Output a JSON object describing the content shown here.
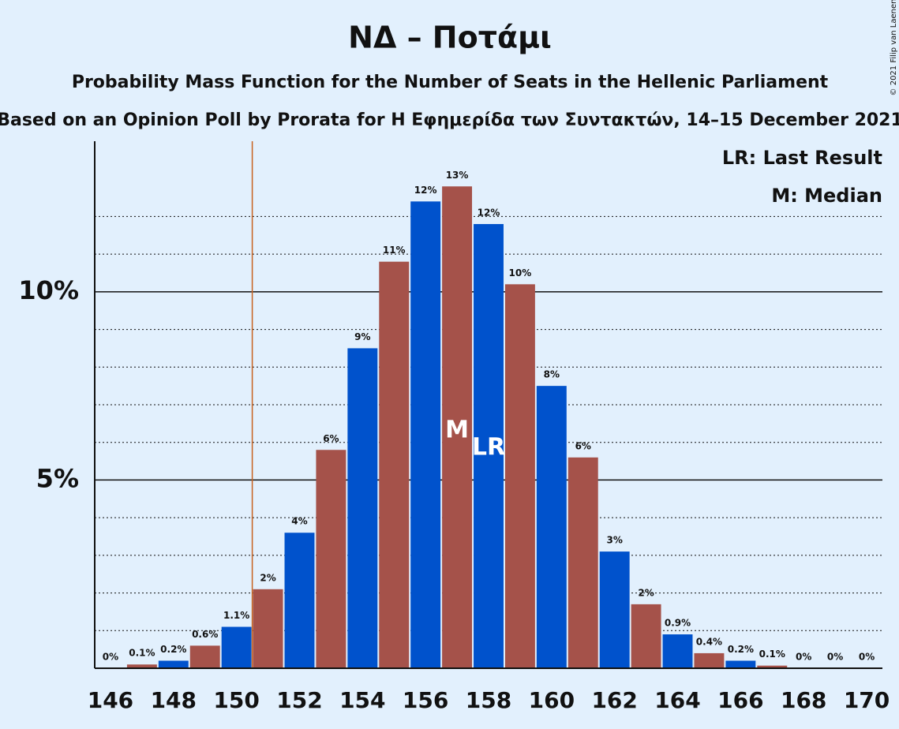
{
  "chart_data": {
    "type": "bar",
    "title": "ΝΔ – Ποτάμι",
    "subtitle": "Probability Mass Function for the Number of Seats in the Hellenic Parliament",
    "source": "Based on an Opinion Poll by Prorata for Η Εφημερίδα των Συντακτών, 14–15 December 2021",
    "copyright": "© 2021 Filip van Laenen",
    "x": [
      146,
      147,
      148,
      149,
      150,
      151,
      152,
      153,
      154,
      155,
      156,
      157,
      158,
      159,
      160,
      161,
      162,
      163,
      164,
      165,
      166,
      167,
      168,
      169,
      170
    ],
    "values": [
      0,
      0.1,
      0.2,
      0.6,
      1.1,
      2.1,
      3.6,
      5.8,
      8.5,
      10.8,
      12.4,
      12.8,
      11.8,
      10.2,
      7.5,
      5.6,
      3.1,
      1.7,
      0.9,
      0.4,
      0.2,
      0.07,
      0,
      0,
      0
    ],
    "value_labels": [
      "0%",
      "0.1%",
      "0.2%",
      "0.6%",
      "1.1%",
      "2%",
      "4%",
      "6%",
      "9%",
      "11%",
      "12%",
      "13%",
      "12%",
      "10%",
      "8%",
      "6%",
      "3%",
      "2%",
      "0.9%",
      "0.4%",
      "0.2%",
      "0.1%",
      "0%",
      "0%",
      "0%"
    ],
    "colors": [
      "#0052cc",
      "#a5524a"
    ],
    "xlim": [
      145.5,
      170.5
    ],
    "xticks": [
      146,
      148,
      150,
      152,
      154,
      156,
      158,
      160,
      162,
      164,
      166,
      168,
      170
    ],
    "ylim": [
      0,
      14
    ],
    "yticks": [
      {
        "value": 5,
        "label": "5%"
      },
      {
        "value": 10,
        "label": "10%"
      }
    ],
    "minor_yticks": [
      1,
      2,
      3,
      4,
      6,
      7,
      8,
      9,
      11,
      12
    ],
    "majority_line": 150.5,
    "majority_color": "#c8621e",
    "annotations": [
      {
        "text": "M",
        "x": 157
      },
      {
        "text": "LR",
        "x": 158
      }
    ],
    "legend": [
      "LR: Last Result",
      "M: Median"
    ]
  }
}
